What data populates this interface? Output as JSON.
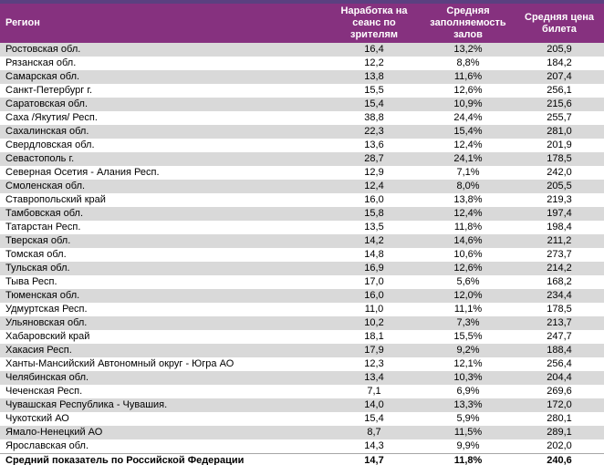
{
  "colors": {
    "top_strip": "#5B4080",
    "header_bg": "#86317F",
    "header_text": "#FFFFFF",
    "row_alt_bg": "#D9D9D9",
    "row_bg": "#FFFFFF",
    "body_text": "#000000"
  },
  "chart_data": {
    "type": "table",
    "title": "",
    "columns": [
      "Регион",
      "Наработка на сеанс по зрителям",
      "Средняя заполняемость залов",
      "Средняя цена билета"
    ],
    "rows": [
      [
        "Ростовская обл.",
        "16,4",
        "13,2%",
        "205,9"
      ],
      [
        "Рязанская обл.",
        "12,2",
        "8,8%",
        "184,2"
      ],
      [
        "Самарская обл.",
        "13,8",
        "11,6%",
        "207,4"
      ],
      [
        "Санкт-Петербург г.",
        "15,5",
        "12,6%",
        "256,1"
      ],
      [
        "Саратовская обл.",
        "15,4",
        "10,9%",
        "215,6"
      ],
      [
        "Саха /Якутия/ Респ.",
        "38,8",
        "24,4%",
        "255,7"
      ],
      [
        "Сахалинская обл.",
        "22,3",
        "15,4%",
        "281,0"
      ],
      [
        "Свердловская обл.",
        "13,6",
        "12,4%",
        "201,9"
      ],
      [
        "Севастополь г.",
        "28,7",
        "24,1%",
        "178,5"
      ],
      [
        "Северная Осетия - Алания Респ.",
        "12,9",
        "7,1%",
        "242,0"
      ],
      [
        "Смоленская обл.",
        "12,4",
        "8,0%",
        "205,5"
      ],
      [
        "Ставропольский край",
        "16,0",
        "13,8%",
        "219,3"
      ],
      [
        "Тамбовская обл.",
        "15,8",
        "12,4%",
        "197,4"
      ],
      [
        "Татарстан Респ.",
        "13,5",
        "11,8%",
        "198,4"
      ],
      [
        "Тверская обл.",
        "14,2",
        "14,6%",
        "211,2"
      ],
      [
        "Томская обл.",
        "14,8",
        "10,6%",
        "273,7"
      ],
      [
        "Тульская обл.",
        "16,9",
        "12,6%",
        "214,2"
      ],
      [
        "Тыва Респ.",
        "17,0",
        "5,6%",
        "168,2"
      ],
      [
        "Тюменская обл.",
        "16,0",
        "12,0%",
        "234,4"
      ],
      [
        "Удмуртская Респ.",
        "11,0",
        "11,1%",
        "178,5"
      ],
      [
        "Ульяновская обл.",
        "10,2",
        "7,3%",
        "213,7"
      ],
      [
        "Хабаровский край",
        "18,1",
        "15,5%",
        "247,7"
      ],
      [
        "Хакасия Респ.",
        "17,9",
        "9,2%",
        "188,4"
      ],
      [
        "Ханты-Мансийский Автономный округ - Югра АО",
        "12,3",
        "12,1%",
        "256,4"
      ],
      [
        "Челябинская обл.",
        "13,4",
        "10,3%",
        "204,4"
      ],
      [
        "Чеченская Респ.",
        "7,1",
        "6,9%",
        "269,6"
      ],
      [
        "Чувашская Республика - Чувашия.",
        "14,0",
        "13,3%",
        "172,0"
      ],
      [
        "Чукотский АО",
        "15,4",
        "5,9%",
        "280,1"
      ],
      [
        "Ямало-Ненецкий АО",
        "8,7",
        "11,5%",
        "289,1"
      ],
      [
        "Ярославская обл.",
        "14,3",
        "9,9%",
        "202,0"
      ]
    ],
    "summary_row": [
      "Средний показатель по Российской Федерации",
      "14,7",
      "11,8%",
      "240,6"
    ]
  }
}
